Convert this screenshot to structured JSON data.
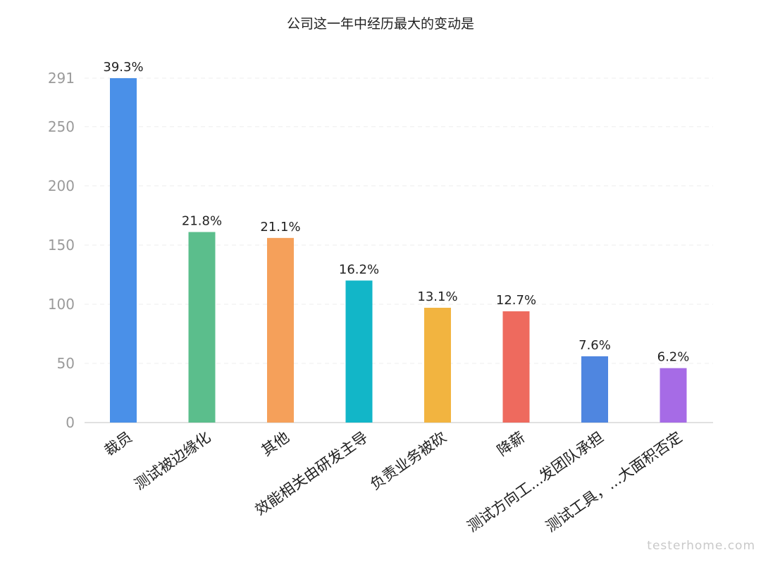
{
  "chart_data": {
    "type": "bar",
    "title": "公司这一年中经历最大的变动是",
    "xlabel": "",
    "ylabel": "",
    "ylim": [
      0,
      291
    ],
    "yticks": [
      0,
      50,
      100,
      150,
      200,
      250,
      291
    ],
    "grid": true,
    "categories": [
      "裁员",
      "测试被边缘化",
      "其他",
      "效能相关由研发主导",
      "负责业务被砍",
      "降薪",
      "测试方向工...发团队承担",
      "测试工具，...大面积否定"
    ],
    "values": [
      291,
      161,
      156,
      120,
      97,
      94,
      56,
      46
    ],
    "data_labels": [
      "39.3%",
      "21.8%",
      "21.1%",
      "16.2%",
      "13.1%",
      "12.7%",
      "7.6%",
      "6.2%"
    ],
    "colors": [
      "#4a90e8",
      "#5bbe8c",
      "#f5a05a",
      "#12b6c8",
      "#f2b440",
      "#ee6a5e",
      "#4f86e0",
      "#a66be6"
    ]
  },
  "watermark": "testerhome.com"
}
